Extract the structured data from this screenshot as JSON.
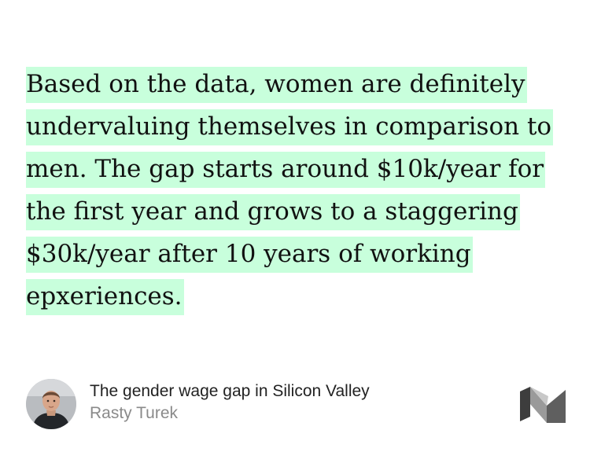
{
  "quote": {
    "lines": [
      "Based on the data, women are definitely",
      "undervaluing themselves in comparison to",
      "men. The gap starts around $10k/year for",
      "the first year and grows to a staggering",
      "$30k/year after 10 years of working",
      "epxeriences."
    ],
    "highlight_color": "#c8ffdc"
  },
  "footer": {
    "article_title": "The gender wage gap in Silicon Valley",
    "author": "Rasty Turek",
    "avatar_icon": "author-avatar",
    "logo_icon": "medium-logo-icon"
  }
}
